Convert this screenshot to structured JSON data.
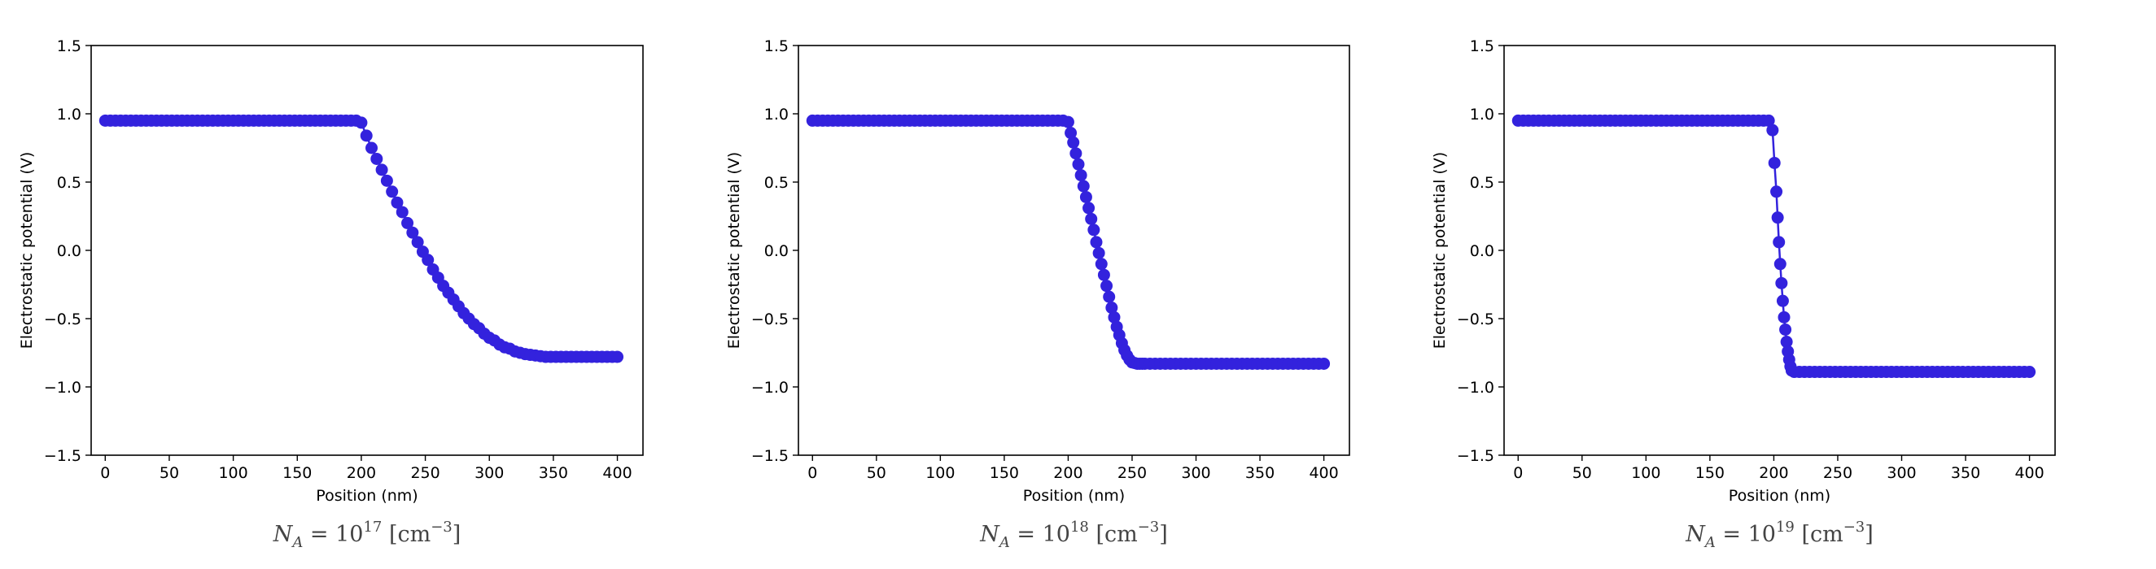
{
  "chart_data": [
    {
      "type": "line",
      "marker": "circle",
      "xlabel": "Position (nm)",
      "ylabel": "Electrostatic potential (V)",
      "xlim": [
        -11,
        420
      ],
      "ylim": [
        -1.5,
        1.5
      ],
      "xticks": [
        0,
        50,
        100,
        150,
        200,
        250,
        300,
        350,
        400
      ],
      "yticks": [
        -1.5,
        -1.0,
        -0.5,
        0.0,
        0.5,
        1.0,
        1.5
      ],
      "xticklabels": [
        "0",
        "50",
        "100",
        "150",
        "200",
        "250",
        "300",
        "350",
        "400"
      ],
      "yticklabels": [
        "−1.5",
        "−1.0",
        "−0.5",
        "0.0",
        "0.5",
        "1.0",
        "1.5"
      ],
      "grid": false,
      "color": "#3322dd",
      "caption": {
        "base": "N",
        "sub": "A",
        "eq": " = 10",
        "exp": "17",
        "unit": " [cm",
        "unit_exp": "−3",
        "unit_end": "]"
      },
      "series": [
        {
          "x": [
            0,
            4,
            8,
            12,
            16,
            20,
            24,
            28,
            32,
            36,
            40,
            44,
            48,
            52,
            56,
            60,
            64,
            68,
            72,
            76,
            80,
            84,
            88,
            92,
            96,
            100,
            104,
            108,
            112,
            116,
            120,
            124,
            128,
            132,
            136,
            140,
            144,
            148,
            152,
            156,
            160,
            164,
            168,
            172,
            176,
            180,
            184,
            188,
            192,
            196,
            200,
            204,
            208,
            212,
            216,
            220,
            224,
            228,
            232,
            236,
            240,
            244,
            248,
            252,
            256,
            260,
            264,
            268,
            272,
            276,
            280,
            284,
            288,
            292,
            296,
            300,
            304,
            308,
            312,
            316,
            320,
            324,
            328,
            332,
            336,
            340,
            344,
            348,
            352,
            356,
            360,
            364,
            368,
            372,
            376,
            380,
            384,
            388,
            392,
            396,
            400
          ],
          "y": [
            0.95,
            0.95,
            0.95,
            0.95,
            0.95,
            0.95,
            0.95,
            0.95,
            0.95,
            0.95,
            0.95,
            0.95,
            0.95,
            0.95,
            0.95,
            0.95,
            0.95,
            0.95,
            0.95,
            0.95,
            0.95,
            0.95,
            0.95,
            0.95,
            0.95,
            0.95,
            0.95,
            0.95,
            0.95,
            0.95,
            0.95,
            0.95,
            0.95,
            0.95,
            0.95,
            0.95,
            0.95,
            0.95,
            0.95,
            0.95,
            0.95,
            0.95,
            0.95,
            0.95,
            0.95,
            0.95,
            0.95,
            0.95,
            0.95,
            0.95,
            0.935,
            0.84,
            0.75,
            0.67,
            0.59,
            0.51,
            0.43,
            0.35,
            0.28,
            0.2,
            0.13,
            0.06,
            -0.01,
            -0.07,
            -0.14,
            -0.2,
            -0.26,
            -0.31,
            -0.36,
            -0.41,
            -0.46,
            -0.5,
            -0.54,
            -0.57,
            -0.61,
            -0.64,
            -0.66,
            -0.69,
            -0.71,
            -0.72,
            -0.74,
            -0.75,
            -0.76,
            -0.765,
            -0.77,
            -0.775,
            -0.78,
            -0.78,
            -0.78,
            -0.78,
            -0.78,
            -0.78,
            -0.78,
            -0.78,
            -0.78,
            -0.78,
            -0.78,
            -0.78,
            -0.78,
            -0.78,
            -0.78
          ]
        }
      ]
    },
    {
      "type": "line",
      "marker": "circle",
      "xlabel": "Position (nm)",
      "ylabel": "Electrostatic potential (V)",
      "xlim": [
        -11,
        420
      ],
      "ylim": [
        -1.5,
        1.5
      ],
      "xticks": [
        0,
        50,
        100,
        150,
        200,
        250,
        300,
        350,
        400
      ],
      "yticks": [
        -1.5,
        -1.0,
        -0.5,
        0.0,
        0.5,
        1.0,
        1.5
      ],
      "xticklabels": [
        "0",
        "50",
        "100",
        "150",
        "200",
        "250",
        "300",
        "350",
        "400"
      ],
      "yticklabels": [
        "−1.5",
        "−1.0",
        "−0.5",
        "0.0",
        "0.5",
        "1.0",
        "1.5"
      ],
      "grid": false,
      "color": "#3322dd",
      "caption": {
        "base": "N",
        "sub": "A",
        "eq": " = 10",
        "exp": "18",
        "unit": " [cm",
        "unit_exp": "−3",
        "unit_end": "]"
      },
      "series": [
        {
          "x": [
            0,
            4,
            8,
            12,
            16,
            20,
            24,
            28,
            32,
            36,
            40,
            44,
            48,
            52,
            56,
            60,
            64,
            68,
            72,
            76,
            80,
            84,
            88,
            92,
            96,
            100,
            104,
            108,
            112,
            116,
            120,
            124,
            128,
            132,
            136,
            140,
            144,
            148,
            152,
            156,
            160,
            164,
            168,
            172,
            176,
            180,
            184,
            188,
            192,
            196,
            200,
            202,
            204,
            206,
            208,
            210,
            212,
            214,
            216,
            218,
            220,
            222,
            224,
            226,
            228,
            230,
            232,
            234,
            236,
            238,
            240,
            242,
            244,
            246,
            248,
            250,
            252,
            254,
            256,
            258,
            260,
            264,
            268,
            272,
            276,
            280,
            284,
            288,
            292,
            296,
            300,
            304,
            308,
            312,
            316,
            320,
            324,
            328,
            332,
            336,
            340,
            344,
            348,
            352,
            356,
            360,
            364,
            368,
            372,
            376,
            380,
            384,
            388,
            392,
            396,
            400
          ],
          "y": [
            0.95,
            0.95,
            0.95,
            0.95,
            0.95,
            0.95,
            0.95,
            0.95,
            0.95,
            0.95,
            0.95,
            0.95,
            0.95,
            0.95,
            0.95,
            0.95,
            0.95,
            0.95,
            0.95,
            0.95,
            0.95,
            0.95,
            0.95,
            0.95,
            0.95,
            0.95,
            0.95,
            0.95,
            0.95,
            0.95,
            0.95,
            0.95,
            0.95,
            0.95,
            0.95,
            0.95,
            0.95,
            0.95,
            0.95,
            0.95,
            0.95,
            0.95,
            0.95,
            0.95,
            0.95,
            0.95,
            0.95,
            0.95,
            0.95,
            0.95,
            0.94,
            0.86,
            0.79,
            0.71,
            0.63,
            0.55,
            0.47,
            0.39,
            0.31,
            0.23,
            0.15,
            0.06,
            -0.02,
            -0.1,
            -0.18,
            -0.26,
            -0.34,
            -0.42,
            -0.49,
            -0.56,
            -0.62,
            -0.68,
            -0.73,
            -0.77,
            -0.8,
            -0.82,
            -0.825,
            -0.83,
            -0.83,
            -0.83,
            -0.83,
            -0.83,
            -0.83,
            -0.83,
            -0.83,
            -0.83,
            -0.83,
            -0.83,
            -0.83,
            -0.83,
            -0.83,
            -0.83,
            -0.83,
            -0.83,
            -0.83,
            -0.83,
            -0.83,
            -0.83,
            -0.83,
            -0.83,
            -0.83,
            -0.83,
            -0.83,
            -0.83,
            -0.83,
            -0.83,
            -0.83,
            -0.83,
            -0.83,
            -0.83,
            -0.83,
            -0.83,
            -0.83,
            -0.83,
            -0.83,
            -0.83
          ]
        }
      ]
    },
    {
      "type": "line",
      "marker": "circle",
      "xlabel": "Position (nm)",
      "ylabel": "Electrostatic potential (V)",
      "xlim": [
        -11,
        420
      ],
      "ylim": [
        -1.5,
        1.5
      ],
      "xticks": [
        0,
        50,
        100,
        150,
        200,
        250,
        300,
        350,
        400
      ],
      "yticks": [
        -1.5,
        -1.0,
        -0.5,
        0.0,
        0.5,
        1.0,
        1.5
      ],
      "xticklabels": [
        "0",
        "50",
        "100",
        "150",
        "200",
        "250",
        "300",
        "350",
        "400"
      ],
      "yticklabels": [
        "−1.5",
        "−1.0",
        "−0.5",
        "0.0",
        "0.5",
        "1.0",
        "1.5"
      ],
      "grid": false,
      "color": "#3322dd",
      "caption": {
        "base": "N",
        "sub": "A",
        "eq": " = 10",
        "exp": "19",
        "unit": " [cm",
        "unit_exp": "−3",
        "unit_end": "]"
      },
      "series": [
        {
          "x": [
            0,
            4,
            8,
            12,
            16,
            20,
            24,
            28,
            32,
            36,
            40,
            44,
            48,
            52,
            56,
            60,
            64,
            68,
            72,
            76,
            80,
            84,
            88,
            92,
            96,
            100,
            104,
            108,
            112,
            116,
            120,
            124,
            128,
            132,
            136,
            140,
            144,
            148,
            152,
            156,
            160,
            164,
            168,
            172,
            176,
            180,
            184,
            188,
            192,
            196,
            199,
            200.5,
            202,
            203,
            204,
            205,
            206,
            207,
            208,
            209,
            210,
            211,
            212,
            213,
            214,
            216,
            220,
            224,
            228,
            232,
            236,
            240,
            244,
            248,
            252,
            256,
            260,
            264,
            268,
            272,
            276,
            280,
            284,
            288,
            292,
            296,
            300,
            304,
            308,
            312,
            316,
            320,
            324,
            328,
            332,
            336,
            340,
            344,
            348,
            352,
            356,
            360,
            364,
            368,
            372,
            376,
            380,
            384,
            388,
            392,
            396,
            400
          ],
          "y": [
            0.95,
            0.95,
            0.95,
            0.95,
            0.95,
            0.95,
            0.95,
            0.95,
            0.95,
            0.95,
            0.95,
            0.95,
            0.95,
            0.95,
            0.95,
            0.95,
            0.95,
            0.95,
            0.95,
            0.95,
            0.95,
            0.95,
            0.95,
            0.95,
            0.95,
            0.95,
            0.95,
            0.95,
            0.95,
            0.95,
            0.95,
            0.95,
            0.95,
            0.95,
            0.95,
            0.95,
            0.95,
            0.95,
            0.95,
            0.95,
            0.95,
            0.95,
            0.95,
            0.95,
            0.95,
            0.95,
            0.95,
            0.95,
            0.95,
            0.95,
            0.88,
            0.64,
            0.43,
            0.24,
            0.06,
            -0.1,
            -0.24,
            -0.37,
            -0.49,
            -0.58,
            -0.67,
            -0.74,
            -0.8,
            -0.85,
            -0.88,
            -0.89,
            -0.89,
            -0.89,
            -0.89,
            -0.89,
            -0.89,
            -0.89,
            -0.89,
            -0.89,
            -0.89,
            -0.89,
            -0.89,
            -0.89,
            -0.89,
            -0.89,
            -0.89,
            -0.89,
            -0.89,
            -0.89,
            -0.89,
            -0.89,
            -0.89,
            -0.89,
            -0.89,
            -0.89,
            -0.89,
            -0.89,
            -0.89,
            -0.89,
            -0.89,
            -0.89,
            -0.89,
            -0.89,
            -0.89,
            -0.89,
            -0.89,
            -0.89,
            -0.89,
            -0.89,
            -0.89,
            -0.89,
            -0.89,
            -0.89,
            -0.89,
            -0.89,
            -0.89,
            -0.89
          ]
        }
      ]
    }
  ]
}
